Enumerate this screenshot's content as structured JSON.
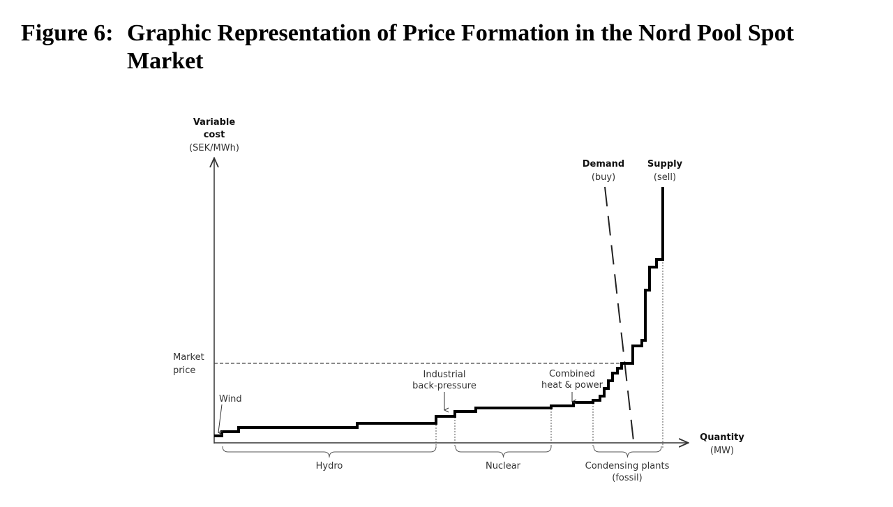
{
  "figure": {
    "number": "Figure 6:",
    "title_line1": "Graphic Representation of Price Formation in the Nord Pool Spot",
    "title_line2": "Market"
  },
  "diagram": {
    "y_axis": {
      "line1": "Variable",
      "line2": "cost",
      "unit": "(SEK/MWh)"
    },
    "x_axis": {
      "label": "Quantity",
      "unit": "(MW)"
    },
    "market_price": {
      "line1": "Market",
      "line2": "price"
    },
    "demand": {
      "label": "Demand",
      "sub": "(buy)"
    },
    "supply": {
      "label": "Supply",
      "sub": "(sell)"
    },
    "annotations": {
      "wind": "Wind",
      "industrial_1": "Industrial",
      "industrial_2": "back-pressure",
      "chp_1": "Combined",
      "chp_2": "heat & power"
    },
    "groups": {
      "hydro": "Hydro",
      "nuclear": "Nuclear",
      "condensing_1": "Condensing plants",
      "condensing_2": "(fossil)"
    }
  }
}
